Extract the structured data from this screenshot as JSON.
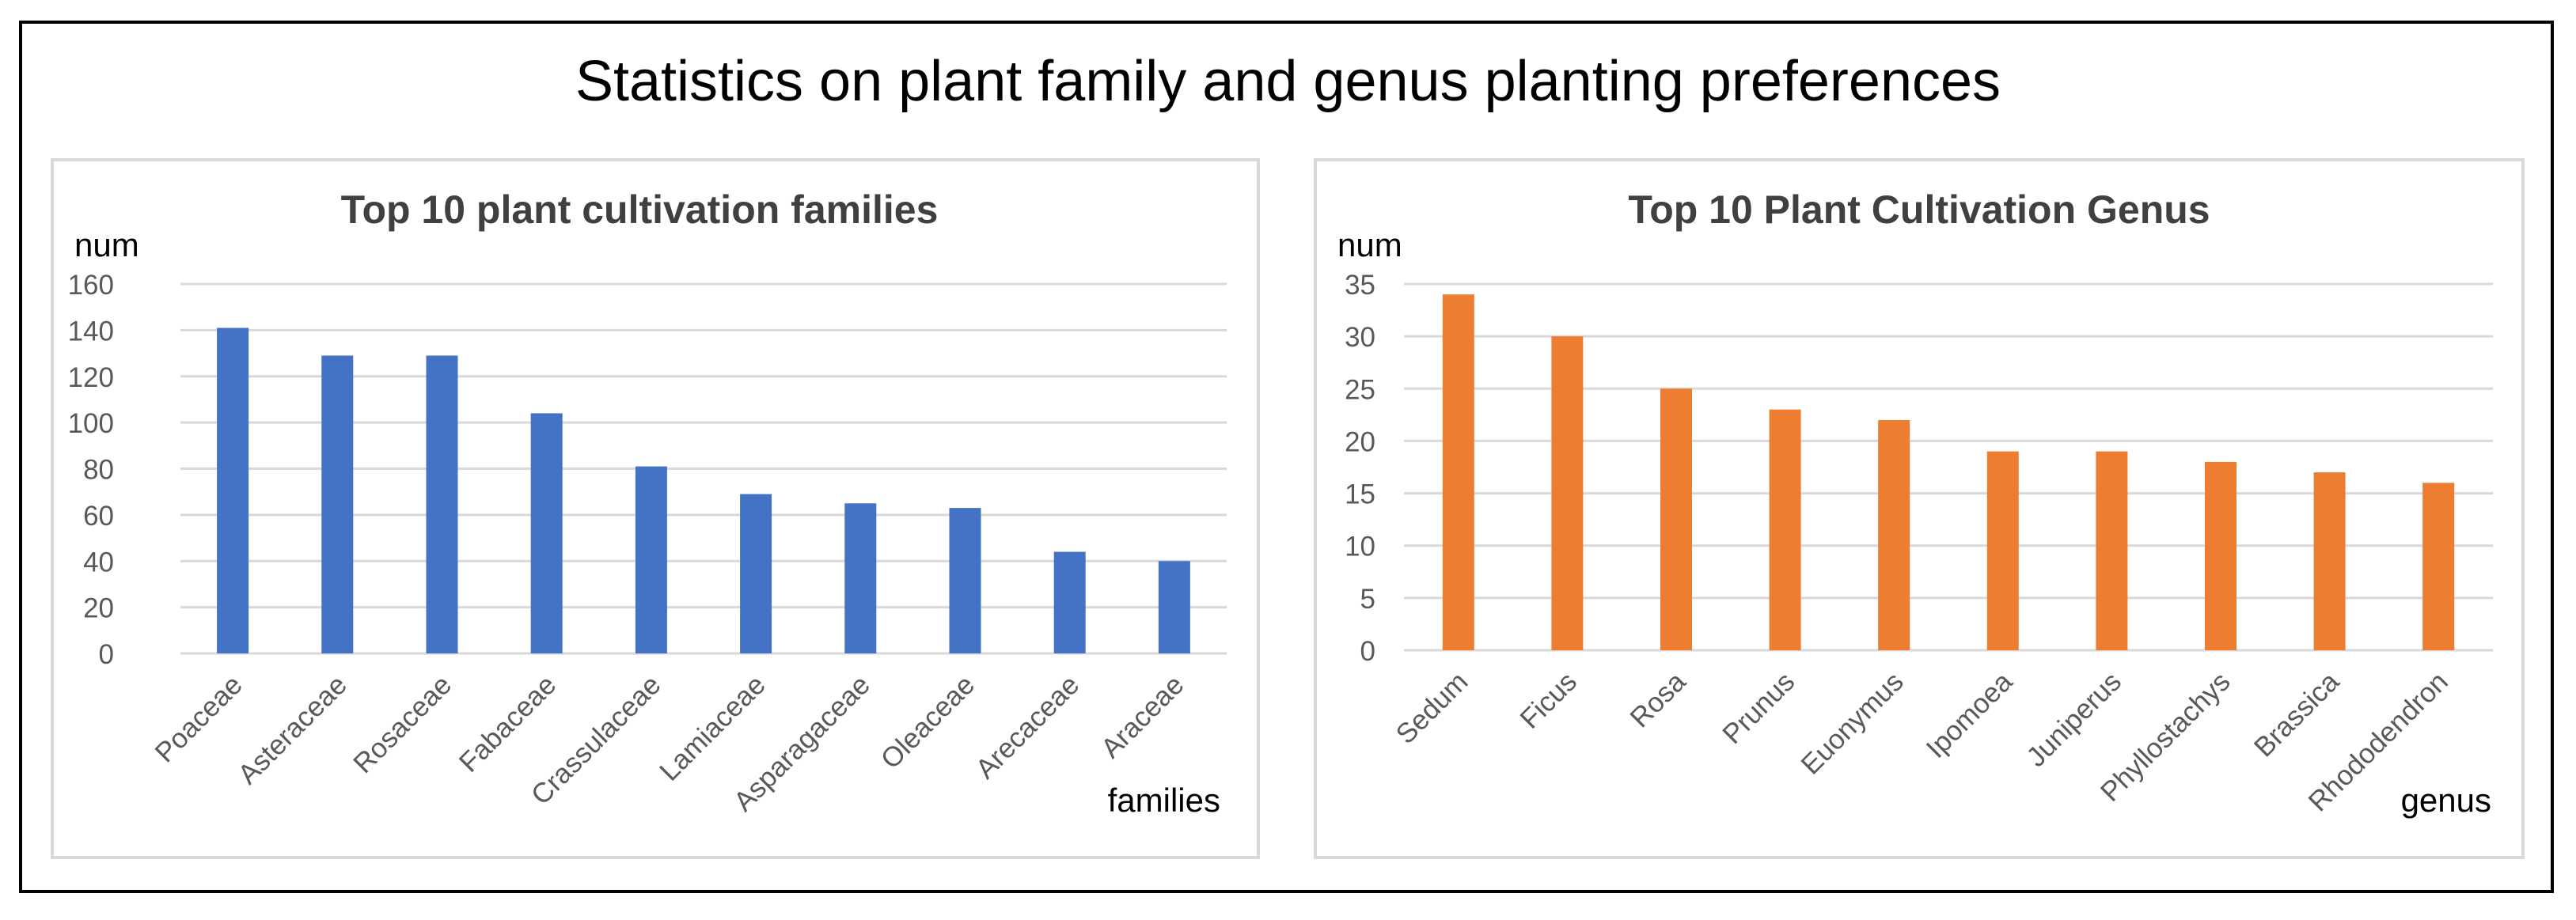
{
  "main_title": "Statistics on plant family and genus planting preferences",
  "colors": {
    "families_bar": "#4472C4",
    "genus_bar": "#ED7D31",
    "grid": "#d9d9d9",
    "text": "#595959",
    "title": "#404040"
  },
  "chart_data": [
    {
      "type": "bar",
      "title": "Top 10 plant cultivation families",
      "ylabel": "num",
      "xlabel": "families",
      "ylim": [
        0,
        160
      ],
      "yticks": [
        0,
        20,
        40,
        60,
        80,
        100,
        120,
        140,
        160
      ],
      "grid": true,
      "categories": [
        "Poaceae",
        "Asteraceae",
        "Rosaceae",
        "Fabaceae",
        "Crassulaceae",
        "Lamiaceae",
        "Asparagaceae",
        "Oleaceae",
        "Arecaceae",
        "Araceae"
      ],
      "values": [
        141,
        129,
        129,
        104,
        81,
        69,
        65,
        63,
        44,
        40
      ]
    },
    {
      "type": "bar",
      "title": "Top 10 Plant Cultivation Genus",
      "ylabel": "num",
      "xlabel": "genus",
      "ylim": [
        0,
        35
      ],
      "yticks": [
        0,
        5,
        10,
        15,
        20,
        25,
        30,
        35
      ],
      "grid": true,
      "categories": [
        "Sedum",
        "Ficus",
        "Rosa",
        "Prunus",
        "Euonymus",
        "Ipomoea",
        "Juniperus",
        "Phyllostachys",
        "Brassica",
        "Rhododendron"
      ],
      "values": [
        34,
        30,
        25,
        23,
        22,
        19,
        19,
        18,
        17,
        16
      ]
    }
  ]
}
